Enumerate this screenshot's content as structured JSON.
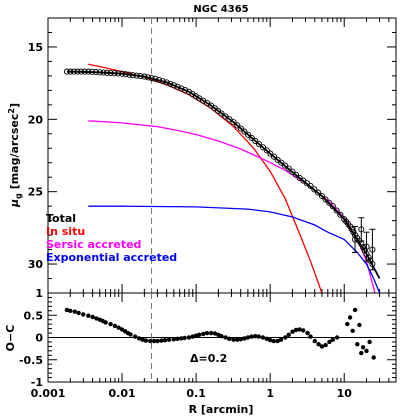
{
  "chart_data": {
    "type": "scatter",
    "title": "NGC 4365",
    "x_scale": "log",
    "xlim": [
      0.001,
      50
    ],
    "xlabel": "R [arcmin]",
    "x_ticks": [
      "0.001",
      "0.01",
      "0.1",
      "1",
      "10"
    ],
    "ref_line_x": 0.025,
    "top_panel": {
      "ylabel": "μ_g [mag/arcsec²]",
      "ylabel_main": "μ",
      "ylabel_sub": "g",
      "ylabel_rest": " [mag/arcsec",
      "ylabel_sup": "2",
      "ylabel_end": "]",
      "ylim": [
        32,
        13
      ],
      "y_ticks": [
        "15",
        "20",
        "25",
        "30"
      ],
      "legend": [
        {
          "label": "Total",
          "color": "#000000"
        },
        {
          "label": "In situ",
          "color": "#ff0000"
        },
        {
          "label": "Sersic accreted",
          "color": "#ff00ff"
        },
        {
          "label": "Exponential accreted",
          "color": "#0000ff"
        }
      ],
      "observed": {
        "x": [
          0.0018,
          0.0025,
          0.0035,
          0.005,
          0.007,
          0.01,
          0.014,
          0.02,
          0.028,
          0.04,
          0.056,
          0.08,
          0.11,
          0.16,
          0.22,
          0.32,
          0.45,
          0.63,
          0.9,
          1.26,
          1.78,
          2.5,
          3.5,
          5.0,
          7.0,
          10.0,
          12.0,
          14.0,
          17.0,
          20.0,
          24.0
        ],
        "y": [
          16.7,
          16.7,
          16.7,
          16.75,
          16.8,
          16.85,
          16.95,
          17.05,
          17.2,
          17.45,
          17.75,
          18.1,
          18.55,
          19.05,
          19.6,
          20.2,
          20.85,
          21.5,
          22.15,
          22.8,
          23.4,
          24.05,
          24.6,
          25.3,
          26.0,
          26.9,
          27.4,
          28.0,
          28.6,
          29.3,
          30.0
        ]
      },
      "error_points": {
        "x": [
          14.0,
          17.0,
          20.0,
          24.0
        ],
        "y": [
          28.3,
          27.6,
          28.8,
          29.0
        ],
        "err": [
          0.9,
          0.8,
          1.0,
          1.4
        ]
      },
      "series": [
        {
          "name": "Total",
          "x": [
            0.0018,
            0.003,
            0.005,
            0.01,
            0.02,
            0.04,
            0.08,
            0.16,
            0.32,
            0.63,
            1.26,
            2.5,
            5.0,
            10.0,
            20.0,
            30.0
          ],
          "y": [
            16.7,
            16.72,
            16.76,
            16.85,
            17.05,
            17.45,
            18.1,
            19.05,
            20.2,
            21.5,
            22.8,
            24.05,
            25.3,
            26.9,
            29.3,
            31.0
          ]
        },
        {
          "name": "In situ",
          "x": [
            0.0035,
            0.006,
            0.01,
            0.02,
            0.04,
            0.08,
            0.16,
            0.32,
            0.6,
            1.0,
            1.6,
            2.5,
            3.5,
            5.0
          ],
          "y": [
            16.2,
            16.45,
            16.7,
            17.1,
            17.6,
            18.3,
            19.25,
            20.5,
            22.0,
            23.6,
            25.5,
            27.9,
            29.8,
            32.0
          ]
        },
        {
          "name": "Sersic accreted",
          "x": [
            0.0035,
            0.01,
            0.03,
            0.06,
            0.1,
            0.2,
            0.4,
            0.8,
            1.5,
            3.0,
            6.0,
            10.0,
            15.0,
            20.0,
            26.0
          ],
          "y": [
            20.1,
            20.25,
            20.5,
            20.8,
            21.05,
            21.5,
            22.05,
            22.75,
            23.45,
            24.4,
            25.6,
            26.8,
            28.3,
            29.8,
            32.0
          ]
        },
        {
          "name": "Exponential accreted",
          "x": [
            0.0035,
            0.01,
            0.1,
            0.5,
            1.0,
            2.0,
            4.0,
            6.0,
            10.0,
            15.0,
            20.0,
            25.0,
            30.0
          ],
          "y": [
            26.0,
            26.0,
            26.05,
            26.2,
            26.4,
            26.75,
            27.3,
            27.8,
            28.3,
            29.2,
            30.0,
            31.0,
            32.0
          ]
        }
      ]
    },
    "bottom_panel": {
      "ylabel": "O−C",
      "ylim": [
        -1,
        1
      ],
      "y_ticks": [
        "-1",
        "-0.5",
        "0",
        "0.5",
        "1"
      ],
      "annotation": "Δ=0.2",
      "residuals": {
        "x": [
          0.0018,
          0.002,
          0.0023,
          0.0026,
          0.003,
          0.0035,
          0.004,
          0.0045,
          0.005,
          0.0055,
          0.006,
          0.007,
          0.008,
          0.009,
          0.01,
          0.011,
          0.012,
          0.013,
          0.015,
          0.017,
          0.019,
          0.021,
          0.024,
          0.027,
          0.03,
          0.034,
          0.038,
          0.043,
          0.05,
          0.056,
          0.063,
          0.07,
          0.08,
          0.09,
          0.1,
          0.11,
          0.125,
          0.14,
          0.16,
          0.18,
          0.2,
          0.22,
          0.25,
          0.28,
          0.32,
          0.36,
          0.4,
          0.45,
          0.5,
          0.56,
          0.63,
          0.7,
          0.8,
          0.9,
          1.0,
          1.12,
          1.26,
          1.4,
          1.6,
          1.78,
          2.0,
          2.24,
          2.5,
          2.8,
          3.2,
          3.5,
          4.0,
          4.5,
          5.0,
          5.6,
          6.3,
          7.0,
          8.0,
          11.0,
          12.0,
          13.0,
          14.0,
          15.0,
          16.0,
          17.0,
          18.0,
          20.0,
          22.0,
          25.0
        ],
        "y": [
          0.62,
          0.6,
          0.58,
          0.55,
          0.52,
          0.49,
          0.46,
          0.43,
          0.4,
          0.37,
          0.34,
          0.3,
          0.26,
          0.22,
          0.18,
          0.14,
          0.1,
          0.07,
          0.02,
          -0.02,
          -0.05,
          -0.07,
          -0.08,
          -0.08,
          -0.08,
          -0.07,
          -0.06,
          -0.05,
          -0.04,
          -0.03,
          -0.02,
          -0.01,
          0.0,
          0.02,
          0.04,
          0.06,
          0.08,
          0.1,
          0.1,
          0.09,
          0.06,
          0.03,
          0.0,
          -0.03,
          -0.05,
          -0.05,
          -0.04,
          -0.02,
          0.0,
          0.02,
          0.03,
          0.02,
          0.0,
          -0.03,
          -0.06,
          -0.08,
          -0.08,
          -0.05,
          0.0,
          0.06,
          0.13,
          0.17,
          0.18,
          0.16,
          0.1,
          0.02,
          -0.08,
          -0.15,
          -0.2,
          -0.17,
          -0.1,
          -0.05,
          0.0,
          0.3,
          0.45,
          0.15,
          0.62,
          -0.15,
          0.28,
          -0.35,
          -0.22,
          -0.3,
          -0.1,
          -0.45
        ]
      }
    }
  }
}
